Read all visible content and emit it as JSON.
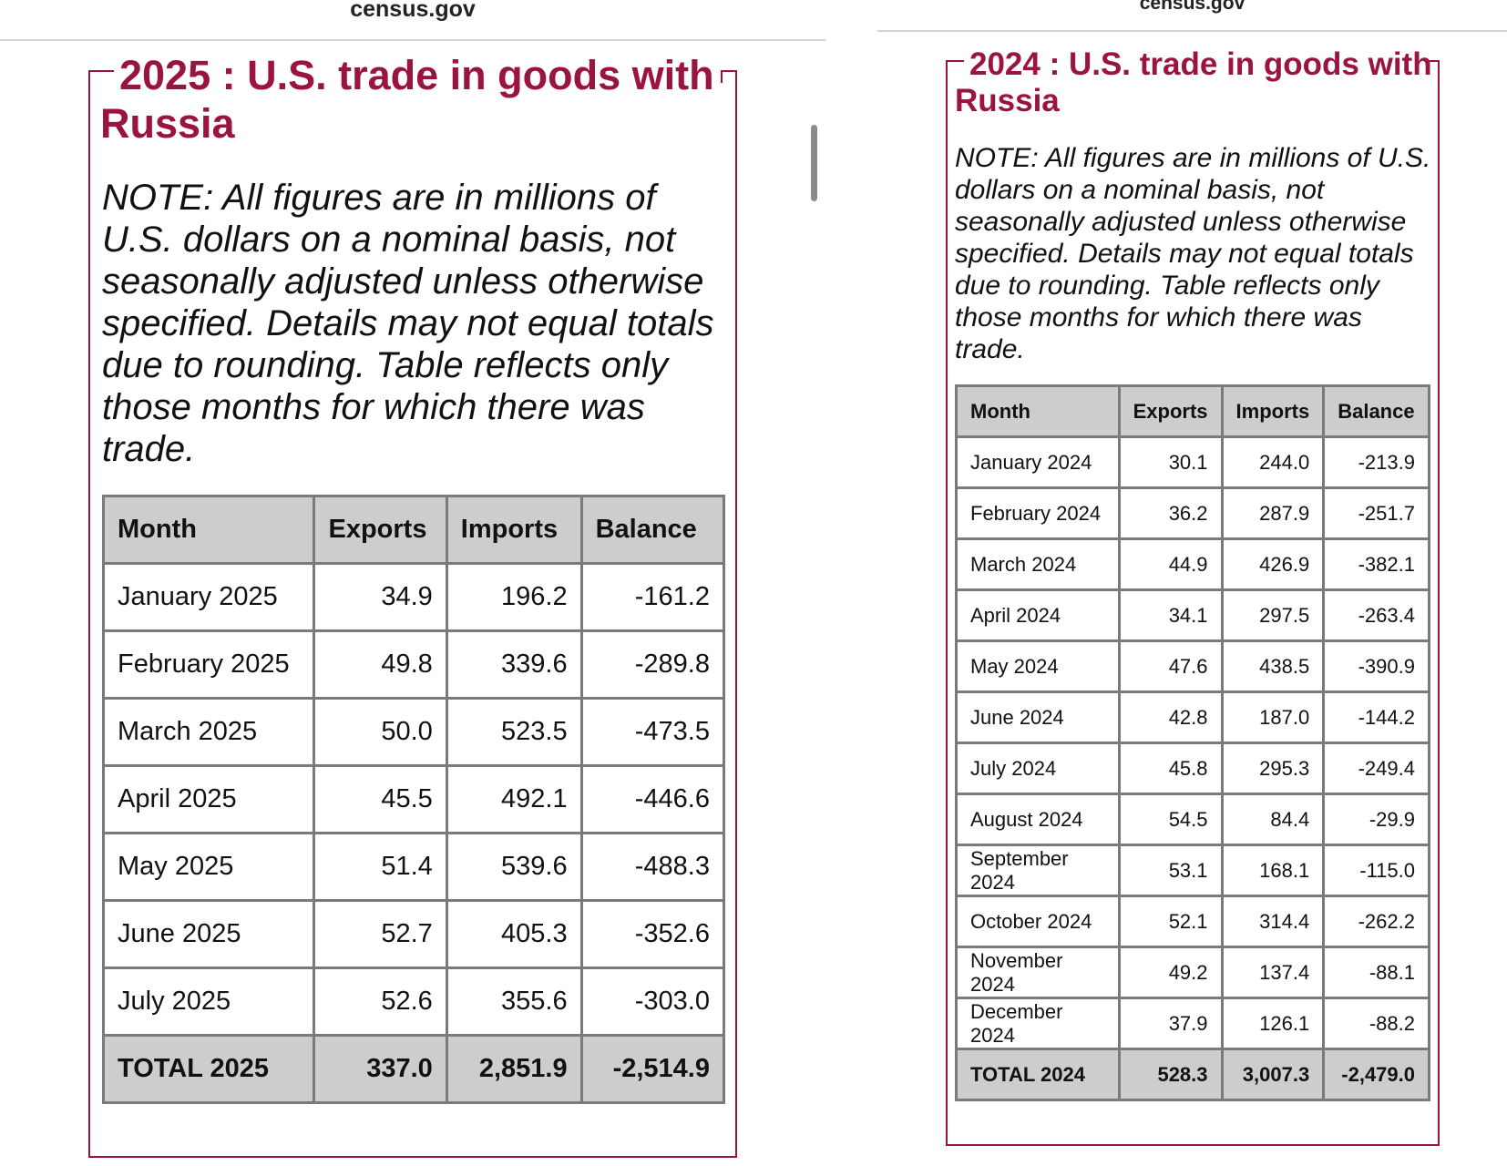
{
  "left": {
    "site": "census.gov",
    "title": "2025 : U.S. trade in goods with Russia",
    "note": "NOTE: All figures are in millions of U.S. dollars on a nominal basis, not seasonally adjusted unless otherwise specified. Details may not equal totals due to rounding. Table reflects only those months for which there was trade.",
    "headers": [
      "Month",
      "Exports",
      "Imports",
      "Balance"
    ],
    "rows": [
      [
        "January 2025",
        "34.9",
        "196.2",
        "-161.2"
      ],
      [
        "February 2025",
        "49.8",
        "339.6",
        "-289.8"
      ],
      [
        "March 2025",
        "50.0",
        "523.5",
        "-473.5"
      ],
      [
        "April 2025",
        "45.5",
        "492.1",
        "-446.6"
      ],
      [
        "May 2025",
        "51.4",
        "539.6",
        "-488.3"
      ],
      [
        "June 2025",
        "52.7",
        "405.3",
        "-352.6"
      ],
      [
        "July 2025",
        "52.6",
        "355.6",
        "-303.0"
      ]
    ],
    "total": [
      "TOTAL 2025",
      "337.0",
      "2,851.9",
      "-2,514.9"
    ]
  },
  "right": {
    "site": "census.gov",
    "title": "2024 : U.S. trade in goods with Russia",
    "note": "NOTE: All figures are in millions of U.S. dollars on a nominal basis, not seasonally adjusted unless otherwise specified. Details may not equal totals due to rounding. Table reflects only those months for which there was trade.",
    "headers": [
      "Month",
      "Exports",
      "Imports",
      "Balance"
    ],
    "rows": [
      [
        "January 2024",
        "30.1",
        "244.0",
        "-213.9"
      ],
      [
        "February 2024",
        "36.2",
        "287.9",
        "-251.7"
      ],
      [
        "March 2024",
        "44.9",
        "426.9",
        "-382.1"
      ],
      [
        "April 2024",
        "34.1",
        "297.5",
        "-263.4"
      ],
      [
        "May 2024",
        "47.6",
        "438.5",
        "-390.9"
      ],
      [
        "June 2024",
        "42.8",
        "187.0",
        "-144.2"
      ],
      [
        "July 2024",
        "45.8",
        "295.3",
        "-249.4"
      ],
      [
        "August 2024",
        "54.5",
        "84.4",
        "-29.9"
      ],
      [
        "September 2024",
        "53.1",
        "168.1",
        "-115.0"
      ],
      [
        "October 2024",
        "52.1",
        "314.4",
        "-262.2"
      ],
      [
        "November 2024",
        "49.2",
        "137.4",
        "-88.1"
      ],
      [
        "December 2024",
        "37.9",
        "126.1",
        "-88.2"
      ]
    ],
    "total": [
      "TOTAL 2024",
      "528.3",
      "3,007.3",
      "-2,479.0"
    ]
  },
  "colors": {
    "accent": "#9b1340",
    "header_bg": "#cdcdcd",
    "border": "#7a7a7a"
  }
}
